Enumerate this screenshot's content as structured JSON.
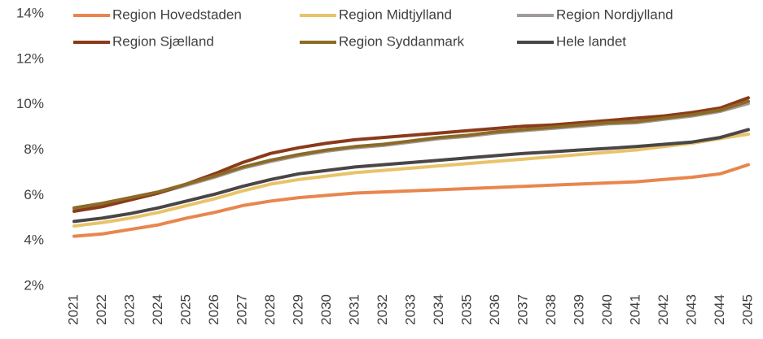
{
  "chart_data": {
    "type": "line",
    "categories": [
      "2021",
      "2022",
      "2023",
      "2024",
      "2025",
      "2026",
      "2027",
      "2028",
      "2029",
      "2030",
      "2031",
      "2032",
      "2033",
      "2034",
      "2035",
      "2036",
      "2037",
      "2038",
      "2039",
      "2040",
      "2041",
      "2042",
      "2043",
      "2044",
      "2045"
    ],
    "series": [
      {
        "name": "Region Hovedstaden",
        "color": "#e8864e",
        "values": [
          4.2,
          4.3,
          4.5,
          4.7,
          5.0,
          5.25,
          5.55,
          5.75,
          5.9,
          6.0,
          6.1,
          6.15,
          6.2,
          6.25,
          6.3,
          6.35,
          6.4,
          6.45,
          6.5,
          6.55,
          6.6,
          6.7,
          6.8,
          6.95,
          7.35
        ]
      },
      {
        "name": "Region Midtjylland",
        "color": "#e8c36a",
        "values": [
          4.65,
          4.8,
          5.0,
          5.25,
          5.55,
          5.85,
          6.2,
          6.5,
          6.7,
          6.85,
          7.0,
          7.1,
          7.2,
          7.3,
          7.4,
          7.5,
          7.6,
          7.7,
          7.8,
          7.9,
          8.0,
          8.15,
          8.3,
          8.5,
          8.7
        ]
      },
      {
        "name": "Region Nordjylland",
        "color": "#a29a98",
        "values": [
          5.4,
          5.6,
          5.85,
          6.1,
          6.45,
          6.8,
          7.2,
          7.5,
          7.75,
          7.95,
          8.1,
          8.2,
          8.35,
          8.5,
          8.6,
          8.75,
          8.85,
          8.95,
          9.05,
          9.15,
          9.2,
          9.35,
          9.5,
          9.7,
          10.05
        ]
      },
      {
        "name": "Region Sjælland",
        "color": "#8b3a1a",
        "values": [
          5.3,
          5.5,
          5.8,
          6.1,
          6.5,
          6.95,
          7.45,
          7.85,
          8.1,
          8.3,
          8.45,
          8.55,
          8.65,
          8.75,
          8.85,
          8.95,
          9.05,
          9.1,
          9.2,
          9.3,
          9.4,
          9.5,
          9.65,
          9.85,
          10.3
        ]
      },
      {
        "name": "Region Syddanmark",
        "color": "#8b6b26",
        "values": [
          5.45,
          5.65,
          5.9,
          6.15,
          6.5,
          6.85,
          7.25,
          7.55,
          7.8,
          8.0,
          8.15,
          8.25,
          8.4,
          8.55,
          8.65,
          8.8,
          8.9,
          9.0,
          9.1,
          9.2,
          9.25,
          9.4,
          9.55,
          9.75,
          10.15
        ]
      },
      {
        "name": "Hele landet",
        "color": "#4a4546",
        "values": [
          4.85,
          5.0,
          5.2,
          5.45,
          5.75,
          6.05,
          6.4,
          6.7,
          6.95,
          7.1,
          7.25,
          7.35,
          7.45,
          7.55,
          7.65,
          7.75,
          7.85,
          7.92,
          8.0,
          8.07,
          8.15,
          8.25,
          8.35,
          8.55,
          8.9
        ]
      }
    ],
    "ylim": [
      2,
      14
    ],
    "yticks": [
      {
        "value": 2,
        "label": "2%"
      },
      {
        "value": 4,
        "label": "4%"
      },
      {
        "value": 6,
        "label": "6%"
      },
      {
        "value": 8,
        "label": "8%"
      },
      {
        "value": 10,
        "label": "10%"
      },
      {
        "value": 12,
        "label": "12%"
      },
      {
        "value": 14,
        "label": "14%"
      }
    ],
    "grid": false,
    "legend": "top"
  }
}
